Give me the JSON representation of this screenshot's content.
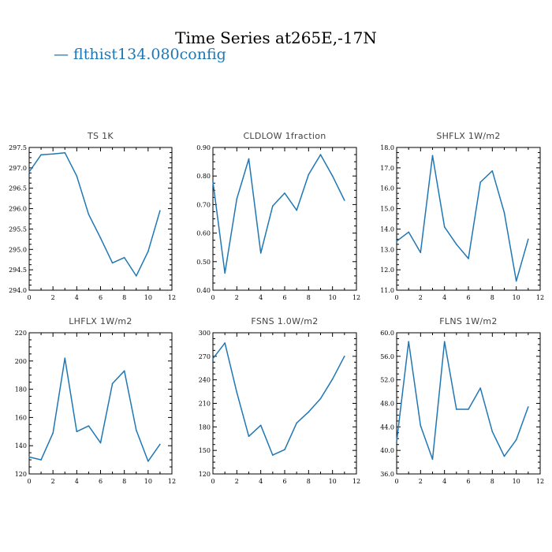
{
  "title": "Time Series at265E,-17N",
  "legend": {
    "label": "flthist134.080config",
    "color": "#1f77b4"
  },
  "chart_data": [
    {
      "type": "line",
      "title": "TS   1K",
      "x": [
        0,
        1,
        2,
        3,
        4,
        5,
        6,
        7,
        8,
        9,
        10,
        11
      ],
      "series": [
        {
          "values": [
            296.9,
            297.32,
            297.34,
            297.37,
            296.8,
            295.86,
            295.28,
            294.67,
            294.8,
            294.35,
            294.95,
            295.95
          ]
        }
      ],
      "xlim": [
        0,
        12
      ],
      "ylim": [
        294.0,
        297.5
      ],
      "xticks": [
        0,
        2,
        4,
        6,
        8,
        10,
        12
      ],
      "yticks": [
        294.0,
        294.5,
        295.0,
        295.5,
        296.0,
        296.5,
        297.0,
        297.5
      ],
      "ytick_labels": [
        "294.0",
        "294.5",
        "295.0",
        "295.5",
        "296.0",
        "296.5",
        "297.0",
        "297.5"
      ],
      "grid": false,
      "color": "#1f77b4"
    },
    {
      "type": "line",
      "title": "CLDLOW   1fraction",
      "x": [
        0,
        1,
        2,
        3,
        4,
        5,
        6,
        7,
        8,
        9,
        10,
        11
      ],
      "series": [
        {
          "values": [
            0.78,
            0.46,
            0.72,
            0.86,
            0.53,
            0.695,
            0.74,
            0.68,
            0.805,
            0.875,
            0.8,
            0.715
          ]
        }
      ],
      "xlim": [
        0,
        12
      ],
      "ylim": [
        0.4,
        0.9
      ],
      "xticks": [
        0,
        2,
        4,
        6,
        8,
        10,
        12
      ],
      "yticks": [
        0.4,
        0.5,
        0.6,
        0.7,
        0.8,
        0.9
      ],
      "ytick_labels": [
        "0.40",
        "0.50",
        "0.60",
        "0.70",
        "0.80",
        "0.90"
      ],
      "grid": false,
      "color": "#1f77b4"
    },
    {
      "type": "line",
      "title": "SHFLX   1W/m2",
      "x": [
        0,
        1,
        2,
        3,
        4,
        5,
        6,
        7,
        8,
        9,
        10,
        11
      ],
      "series": [
        {
          "values": [
            13.4,
            13.85,
            12.85,
            17.6,
            14.1,
            13.25,
            12.55,
            16.3,
            16.85,
            14.8,
            11.45,
            13.5
          ]
        }
      ],
      "xlim": [
        0,
        12
      ],
      "ylim": [
        11.0,
        18.0
      ],
      "xticks": [
        0,
        2,
        4,
        6,
        8,
        10,
        12
      ],
      "yticks": [
        11,
        12,
        13,
        14,
        15,
        16,
        17,
        18
      ],
      "ytick_labels": [
        "11.0",
        "12.0",
        "13.0",
        "14.0",
        "15.0",
        "16.0",
        "17.0",
        "18.0"
      ],
      "grid": false,
      "color": "#1f77b4"
    },
    {
      "type": "line",
      "title": "LHFLX   1W/m2",
      "x": [
        0,
        1,
        2,
        3,
        4,
        5,
        6,
        7,
        8,
        9,
        10,
        11
      ],
      "series": [
        {
          "values": [
            132,
            130,
            149,
            202,
            150,
            154,
            142,
            184,
            193,
            151,
            129,
            141
          ]
        }
      ],
      "xlim": [
        0,
        12
      ],
      "ylim": [
        120,
        220
      ],
      "xticks": [
        0,
        2,
        4,
        6,
        8,
        10,
        12
      ],
      "yticks": [
        120,
        140,
        160,
        180,
        200,
        220
      ],
      "ytick_labels": [
        "120",
        "140",
        "160",
        "180",
        "200",
        "220"
      ],
      "grid": false,
      "color": "#1f77b4"
    },
    {
      "type": "line",
      "title": "FSNS   1.0W/m2",
      "x": [
        0,
        1,
        2,
        3,
        4,
        5,
        6,
        7,
        8,
        9,
        10,
        11
      ],
      "series": [
        {
          "values": [
            267,
            287,
            224,
            168,
            182,
            144,
            151,
            185,
            199,
            216,
            241,
            270
          ]
        }
      ],
      "xlim": [
        0,
        12
      ],
      "ylim": [
        120,
        300
      ],
      "xticks": [
        0,
        2,
        4,
        6,
        8,
        10,
        12
      ],
      "yticks": [
        120,
        150,
        180,
        210,
        240,
        270,
        300
      ],
      "ytick_labels": [
        "120",
        "150",
        "180",
        "210",
        "240",
        "270",
        "300"
      ],
      "grid": false,
      "color": "#1f77b4"
    },
    {
      "type": "line",
      "title": "FLNS   1W/m2",
      "x": [
        0,
        1,
        2,
        3,
        4,
        5,
        6,
        7,
        8,
        9,
        10,
        11
      ],
      "series": [
        {
          "values": [
            41.5,
            58.5,
            44.2,
            38.5,
            58.5,
            47.0,
            47.0,
            50.6,
            43.2,
            39.0,
            41.8,
            47.4
          ]
        }
      ],
      "xlim": [
        0,
        12
      ],
      "ylim": [
        36,
        60
      ],
      "xticks": [
        0,
        2,
        4,
        6,
        8,
        10,
        12
      ],
      "yticks": [
        36,
        40,
        44,
        48,
        52,
        56,
        60
      ],
      "ytick_labels": [
        "36.0",
        "40.0",
        "44.0",
        "48.0",
        "52.0",
        "56.0",
        "60.0"
      ],
      "grid": false,
      "color": "#1f77b4"
    }
  ]
}
